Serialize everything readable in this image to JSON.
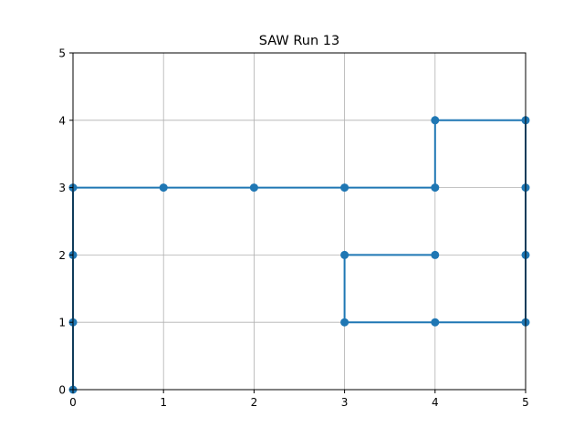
{
  "chart_data": {
    "type": "line",
    "title": "SAW Run 13",
    "xlabel": "",
    "ylabel": "",
    "xlim": [
      0,
      5
    ],
    "ylim": [
      0,
      5
    ],
    "xticks": [
      "0",
      "1",
      "2",
      "3",
      "4",
      "5"
    ],
    "yticks": [
      "0",
      "1",
      "2",
      "3",
      "4",
      "5"
    ],
    "grid": true,
    "series": [
      {
        "color": "#1f77b4",
        "marker": "circle",
        "points": [
          [
            0,
            0
          ],
          [
            0,
            1
          ],
          [
            0,
            2
          ],
          [
            0,
            3
          ],
          [
            1,
            3
          ],
          [
            2,
            3
          ],
          [
            3,
            3
          ],
          [
            4,
            3
          ],
          [
            4,
            4
          ],
          [
            5,
            4
          ],
          [
            5,
            3
          ],
          [
            5,
            2
          ],
          [
            5,
            1
          ],
          [
            4,
            1
          ],
          [
            3,
            1
          ],
          [
            3,
            2
          ],
          [
            4,
            2
          ]
        ]
      }
    ]
  }
}
